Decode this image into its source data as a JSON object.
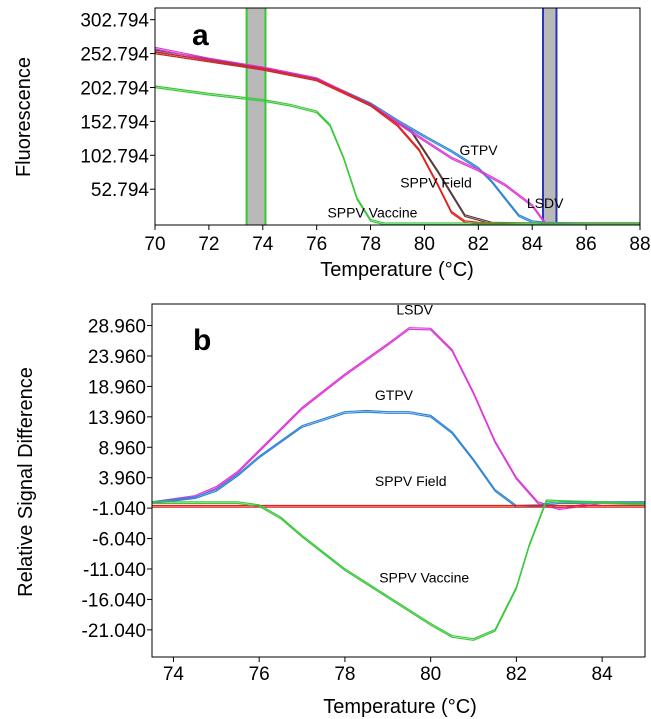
{
  "colors": {
    "red": "#e0201b",
    "blue": "#2f86d6",
    "magenta": "#dc3ad8",
    "green": "#3cc73c",
    "dark": "#5a3a3a",
    "marker_green": "#2ecc2e",
    "marker_blue": "#2a35b8",
    "marker_fill": "#b9b9b9"
  },
  "chart_data": [
    {
      "type": "line",
      "panel_label": "a",
      "xlabel": "Temperature (°C)",
      "ylabel": "Fluorescence",
      "xlim": [
        70,
        88
      ],
      "ylim": [
        0,
        320
      ],
      "xticks": [
        70,
        72,
        74,
        76,
        78,
        80,
        82,
        84,
        86,
        88
      ],
      "yticks": [
        52.794,
        102.794,
        152.794,
        202.794,
        252.794,
        302.794
      ],
      "ytick_labels": [
        "52.794",
        "102.794",
        "152.794",
        "202.794",
        "252.794",
        "302.794"
      ],
      "grid": false,
      "marker_regions": [
        {
          "from": 73.4,
          "to": 74.1,
          "edge": "green"
        },
        {
          "from": 84.4,
          "to": 84.9,
          "edge": "blue"
        }
      ],
      "series": [
        {
          "name": "GTPV",
          "color": "blue",
          "x": [
            70,
            72,
            74,
            76,
            78,
            79,
            80,
            81,
            82,
            82.5,
            83,
            83.5,
            84,
            84.5,
            86,
            88
          ],
          "y": [
            255,
            243,
            231,
            216,
            180,
            155,
            132,
            110,
            85,
            65,
            40,
            15,
            6,
            4,
            3,
            3
          ]
        },
        {
          "name": "LSDV",
          "color": "magenta",
          "x": [
            70,
            72,
            74,
            76,
            78,
            79,
            80,
            81,
            82,
            83,
            84,
            84.5,
            86,
            88
          ],
          "y": [
            262,
            246,
            233,
            217,
            178,
            152,
            126,
            100,
            82,
            60,
            30,
            3,
            3,
            3
          ]
        },
        {
          "name": "SPPV Field",
          "color": "red",
          "x": [
            70,
            72,
            74,
            76,
            78,
            79,
            79.8,
            80.5,
            81,
            81.5,
            82,
            83,
            86,
            88
          ],
          "y": [
            255,
            243,
            231,
            215,
            178,
            148,
            112,
            60,
            20,
            6,
            4,
            3,
            3,
            3
          ]
        },
        {
          "name": "SPPV Vaccine",
          "color": "green",
          "x": [
            70,
            72,
            74,
            75,
            76,
            76.5,
            77,
            77.5,
            78,
            78.5,
            79,
            80,
            82,
            84,
            86,
            88
          ],
          "y": [
            205,
            194,
            185,
            178,
            168,
            148,
            100,
            40,
            8,
            3,
            3,
            3,
            3,
            3,
            3,
            3
          ]
        }
      ],
      "extra_series": [
        {
          "color": "dark",
          "x": [
            70,
            72,
            74,
            76,
            78,
            79.5,
            80.5,
            81.5,
            82.5,
            84,
            88
          ],
          "y": [
            258,
            245,
            232,
            216,
            178,
            140,
            80,
            15,
            4,
            3,
            3
          ]
        }
      ],
      "annotations": [
        {
          "text": "GTPV",
          "x": 81.3,
          "y": 103
        },
        {
          "text": "SPPV Field",
          "x": 79.1,
          "y": 55
        },
        {
          "text": "LSDV",
          "x": 83.8,
          "y": 25
        },
        {
          "text": "SPPV Vaccine",
          "x": 76.4,
          "y": 11
        }
      ]
    },
    {
      "type": "line",
      "panel_label": "b",
      "xlabel": "Temperature (°C)",
      "ylabel": "Relative Signal Difference",
      "xlim": [
        73.5,
        85
      ],
      "ylim": [
        -25.5,
        32.5
      ],
      "xticks": [
        74,
        76,
        78,
        80,
        82,
        84
      ],
      "yticks": [
        28.96,
        23.96,
        18.96,
        13.96,
        8.96,
        3.96,
        -1.04,
        -6.04,
        -11.04,
        -16.04,
        -21.04
      ],
      "ytick_labels": [
        "28.960",
        "23.960",
        "18.960",
        "13.960",
        "8.960",
        "3.960",
        "-1.040",
        "-6.040",
        "-11.040",
        "-16.040",
        "-21.040"
      ],
      "grid": false,
      "series": [
        {
          "name": "LSDV",
          "color": "magenta",
          "x": [
            73.5,
            74.5,
            75,
            75.5,
            76,
            77,
            78,
            79,
            79.5,
            80,
            80.5,
            81,
            81.5,
            82,
            82.5,
            83,
            84,
            85
          ],
          "y": [
            0,
            1,
            2.5,
            5,
            8.5,
            15.5,
            21,
            26,
            28.6,
            28.5,
            25,
            18,
            10,
            4,
            0,
            -1,
            0,
            0
          ]
        },
        {
          "name": "GTPV",
          "color": "blue",
          "x": [
            73.5,
            74.5,
            75,
            75.5,
            76,
            77,
            78,
            78.5,
            79,
            79.5,
            80,
            80.5,
            81,
            81.5,
            82,
            82.5,
            83,
            84,
            85
          ],
          "y": [
            0,
            0.8,
            2,
            4.5,
            7.5,
            12.5,
            14.8,
            15,
            14.8,
            14.8,
            14.2,
            11.5,
            7,
            2,
            -0.6,
            -0.5,
            0,
            0,
            0
          ]
        },
        {
          "name": "SPPV Field",
          "color": "red",
          "x": [
            73.5,
            75,
            77,
            79,
            81,
            83,
            85
          ],
          "y": [
            -0.6,
            -0.6,
            -0.6,
            -0.6,
            -0.6,
            -0.6,
            -0.6
          ]
        },
        {
          "name": "SPPV Vaccine",
          "color": "green",
          "x": [
            73.5,
            75,
            75.5,
            76,
            76.5,
            77,
            78,
            79,
            80,
            80.5,
            81,
            81.5,
            82,
            82.3,
            82.7,
            83,
            84,
            85
          ],
          "y": [
            0,
            0,
            0,
            -0.5,
            -2.5,
            -5.5,
            -11,
            -15.5,
            -20,
            -22,
            -22.5,
            -21,
            -14,
            -7,
            0.3,
            0.2,
            0,
            -0.2
          ]
        }
      ],
      "annotations": [
        {
          "text": "LSDV",
          "x": 79.2,
          "y": 30.8
        },
        {
          "text": "GTPV",
          "x": 78.7,
          "y": 16.7
        },
        {
          "text": "SPPV Field",
          "x": 78.7,
          "y": 2.6
        },
        {
          "text": "SPPV Vaccine",
          "x": 78.8,
          "y": -13.3
        }
      ]
    }
  ]
}
